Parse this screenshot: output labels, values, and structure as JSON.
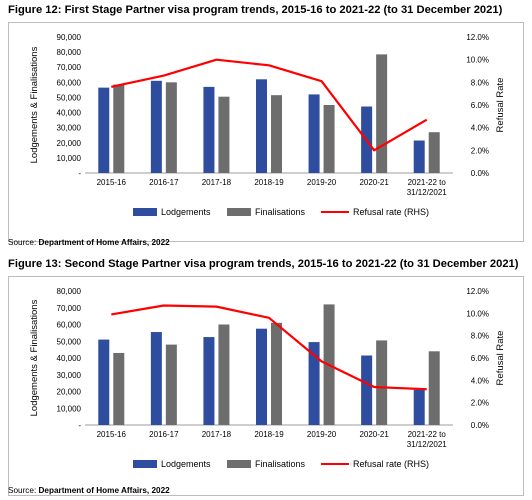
{
  "figures": [
    {
      "title": "Figure 12: First Stage Partner visa program trends, 2015-16 to 2021-22 (to 31 December 2021)",
      "source_prefix": "Source: ",
      "source_name": "Department of Home Affairs, 2022"
    },
    {
      "title": "Figure 13: Second Stage Partner visa program trends, 2015-16 to 2021-22 (to 31 December 2021)",
      "source_prefix": "Source: ",
      "source_name": "Department of Home Affairs, 2022"
    }
  ],
  "colors": {
    "lodgements": "#2e4d9e",
    "finalisations": "#6d6d6d",
    "refusal": "#ff0000"
  },
  "chart_data": [
    {
      "type": "bar",
      "title": "Figure 12: First Stage Partner visa program trends, 2015-16 to 2021-22 (to 31 December 2021)",
      "categories": [
        "2015-16",
        "2016-17",
        "2017-18",
        "2018-19",
        "2019-20",
        "2020-21",
        "2021-22 to\n31/12/2021"
      ],
      "ylabel": "Lodgements & Finalisations",
      "y2label": "Refusal Rate",
      "ylim": [
        0,
        90000
      ],
      "yticks": [
        "-",
        "10,000",
        "20,000",
        "30,000",
        "40,000",
        "50,000",
        "60,000",
        "70,000",
        "80,000",
        "90,000"
      ],
      "y2lim": [
        0,
        12
      ],
      "y2ticks": [
        "0.0%",
        "2.0%",
        "4.0%",
        "6.0%",
        "8.0%",
        "10.0%",
        "12.0%"
      ],
      "legend_position": "bottom",
      "series": [
        {
          "name": "Lodgements",
          "kind": "bar",
          "axis": "left",
          "values": [
            56500,
            61000,
            57000,
            62000,
            52000,
            44000,
            21500
          ]
        },
        {
          "name": "Finalisations",
          "kind": "bar",
          "axis": "left",
          "values": [
            58500,
            60000,
            50500,
            51500,
            45000,
            78500,
            27000
          ]
        },
        {
          "name": "Refusal rate (RHS)",
          "kind": "line",
          "axis": "right",
          "values": [
            7.6,
            8.6,
            10.0,
            9.5,
            8.1,
            2.0,
            4.7
          ]
        }
      ]
    },
    {
      "type": "bar",
      "title": "Figure 13: Second Stage Partner visa program trends, 2015-16 to 2021-22 (to 31 December 2021)",
      "categories": [
        "2015-16",
        "2016-17",
        "2017-18",
        "2018-19",
        "2019-20",
        "2020-21",
        "2021-22 to\n31/12/2021"
      ],
      "ylabel": "Lodgements & Finalisations",
      "y2label": "Refusal Rate",
      "ylim": [
        0,
        80000
      ],
      "yticks": [
        "-",
        "10,000",
        "20,000",
        "30,000",
        "40,000",
        "50,000",
        "60,000",
        "70,000",
        "80,000"
      ],
      "y2lim": [
        0,
        12
      ],
      "y2ticks": [
        "0.0%",
        "2.0%",
        "4.0%",
        "6.0%",
        "8.0%",
        "10.0%",
        "12.0%"
      ],
      "legend_position": "bottom",
      "series": [
        {
          "name": "Lodgements",
          "kind": "bar",
          "axis": "left",
          "values": [
            51000,
            55500,
            52500,
            57500,
            49500,
            41500,
            21000
          ]
        },
        {
          "name": "Finalisations",
          "kind": "bar",
          "axis": "left",
          "values": [
            43000,
            48000,
            60000,
            61000,
            72000,
            50500,
            44000
          ]
        },
        {
          "name": "Refusal rate (RHS)",
          "kind": "line",
          "axis": "right",
          "values": [
            9.9,
            10.7,
            10.6,
            9.6,
            5.7,
            3.4,
            3.2
          ]
        }
      ]
    }
  ]
}
